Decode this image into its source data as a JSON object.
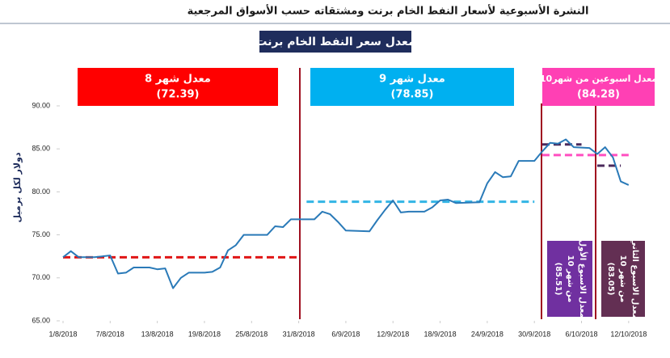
{
  "chart_data": {
    "type": "line",
    "title": "النشرة الأسبوعية  لأسعار النفط الخام برنت ومشتقاته حسب الأسواق المرجعية",
    "subtitle": "معدل سعر النفط الخام  برنت",
    "y_label": "دولار لكل برميل",
    "color": "#2a7ab8",
    "x": [
      "2018-08-01",
      "2018-08-02",
      "2018-08-03",
      "2018-08-05",
      "2018-08-06",
      "2018-08-07",
      "2018-08-08",
      "2018-08-09",
      "2018-08-10",
      "2018-08-12",
      "2018-08-13",
      "2018-08-14",
      "2018-08-15",
      "2018-08-16",
      "2018-08-17",
      "2018-08-19",
      "2018-08-20",
      "2018-08-21",
      "2018-08-22",
      "2018-08-23",
      "2018-08-24",
      "2018-08-27",
      "2018-08-28",
      "2018-08-29",
      "2018-08-30",
      "2018-09-02",
      "2018-09-03",
      "2018-09-04",
      "2018-09-05",
      "2018-09-06",
      "2018-09-09",
      "2018-09-10",
      "2018-09-11",
      "2018-09-12",
      "2018-09-13",
      "2018-09-14",
      "2018-09-16",
      "2018-09-17",
      "2018-09-18",
      "2018-09-19",
      "2018-09-20",
      "2018-09-23",
      "2018-09-24",
      "2018-09-25",
      "2018-09-26",
      "2018-09-27",
      "2018-09-28",
      "2018-09-30",
      "2018-10-01",
      "2018-10-02",
      "2018-10-03",
      "2018-10-04",
      "2018-10-05",
      "2018-10-07",
      "2018-10-08",
      "2018-10-09",
      "2018-10-10",
      "2018-10-11",
      "2018-10-12"
    ],
    "values": [
      72.4,
      73.1,
      72.4,
      72.4,
      72.5,
      72.6,
      70.5,
      70.6,
      71.2,
      71.2,
      71.0,
      71.1,
      68.8,
      70.0,
      70.6,
      70.6,
      70.7,
      71.2,
      73.2,
      73.8,
      75.0,
      75.0,
      76.0,
      75.9,
      76.8,
      76.8,
      77.7,
      77.4,
      76.5,
      75.5,
      75.4,
      76.7,
      77.9,
      79.0,
      77.6,
      77.7,
      77.7,
      78.2,
      79.0,
      79.1,
      78.7,
      78.8,
      81.0,
      82.3,
      81.7,
      81.8,
      83.6,
      83.6,
      84.7,
      85.7,
      85.6,
      86.1,
      85.2,
      85.1,
      84.4,
      85.2,
      84.0,
      81.2,
      80.8
    ],
    "xlim": [
      "2018-08-01",
      "2018-10-15"
    ],
    "xticks": [
      {
        "value": "2018-08-01",
        "label": "1/8/2018"
      },
      {
        "value": "2018-08-07",
        "label": "7/8/2018"
      },
      {
        "value": "2018-08-13",
        "label": "13/8/2018"
      },
      {
        "value": "2018-08-19",
        "label": "19/8/2018"
      },
      {
        "value": "2018-08-25",
        "label": "25/8/2018"
      },
      {
        "value": "2018-08-31",
        "label": "31/8/2018"
      },
      {
        "value": "2018-09-06",
        "label": "6/9/2018"
      },
      {
        "value": "2018-09-12",
        "label": "12/9/2018"
      },
      {
        "value": "2018-09-18",
        "label": "18/9/2018"
      },
      {
        "value": "2018-09-24",
        "label": "24/9/2018"
      },
      {
        "value": "2018-09-30",
        "label": "30/9/2018"
      },
      {
        "value": "2018-10-06",
        "label": "6/10/2018"
      },
      {
        "value": "2018-10-12",
        "label": "12/10/2018"
      }
    ],
    "ylim": [
      65,
      90
    ],
    "yticks": [
      {
        "value": 65,
        "label": "65.00"
      },
      {
        "value": 70,
        "label": "70.00"
      },
      {
        "value": 75,
        "label": "75.00"
      },
      {
        "value": 80,
        "label": "80.00"
      },
      {
        "value": 85,
        "label": "85.00"
      },
      {
        "value": 90,
        "label": "90.00"
      }
    ],
    "averages": [
      {
        "label": "معدل شهر 8",
        "value": 72.39,
        "value_label": "(72.39)",
        "color": "#e01515",
        "start": "2018-08-01",
        "end": "2018-08-31"
      },
      {
        "label": "معدل شهر 9",
        "value": 78.85,
        "value_label": "(78.85)",
        "color": "#33b5e5",
        "start": "2018-09-01",
        "end": "2018-09-30"
      },
      {
        "label": "معدل اسبوعين من شهر10",
        "value": 84.28,
        "value_label": "(84.28)",
        "color": "#ff4fc0",
        "start": "2018-10-01",
        "end": "2018-10-12"
      },
      {
        "label": [
          "معدل الاسبوع الأول",
          "من شهر 10"
        ],
        "value": 85.51,
        "value_label": "(85.51)",
        "color": "#4b2a5c",
        "start": "2018-10-01",
        "end": "2018-10-06"
      },
      {
        "label": [
          "معدل الاسبوع الثاني",
          "من شهر 10"
        ],
        "value": 83.05,
        "value_label": "(83.05)",
        "color": "#4b2a5c",
        "start": "2018-10-08",
        "end": "2018-10-11"
      }
    ]
  }
}
